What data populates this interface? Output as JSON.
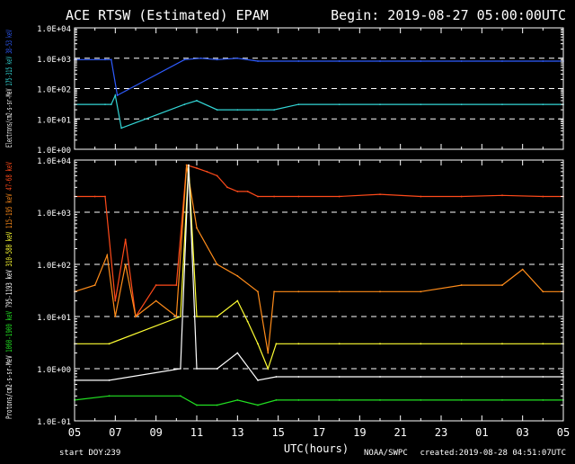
{
  "title": "ACE RTSW (Estimated) EPAM",
  "begin_text": "Begin: 2019-08-27  05:00:00UTC",
  "footer": {
    "start_doy_label": "start DOY:",
    "start_doy_value": "239",
    "x_axis_label": "UTC(hours)",
    "credit": "NOAA/SWPC",
    "created": "created:2019-08-28 04:51:07UTC"
  },
  "colors": {
    "background": "#000000",
    "axes": "#ffffff",
    "grid": "#ffffff",
    "e_38_53": "#2f5cff",
    "e_175_315": "#33d6d6",
    "p_47_68": "#ff4a1a",
    "p_115_195": "#ff8c1a",
    "p_310_580": "#ffff33",
    "p_795_1193": "#ffffff",
    "p_1060_1900": "#22e022"
  },
  "chart_data": [
    {
      "type": "line",
      "panel": "electrons",
      "ylabel": [
        {
          "text": "Electrons/cm2-s-sr-MeV",
          "color": "#ffffff"
        },
        {
          "text": "175-315 keV",
          "color": "#33d6d6"
        },
        {
          "text": "38-53 keV",
          "color": "#2f5cff"
        }
      ],
      "yscale": "log",
      "ylim": [
        1,
        10000
      ],
      "yticks": [
        "1.0E+00",
        "1.0E+01",
        "1.0E+02",
        "1.0E+03",
        "1.0E+04"
      ],
      "grid": "dashed at 1.0E+01, 1.0E+02, 1.0E+03",
      "series": [
        {
          "name": "38-53 keV",
          "color": "#2f5cff",
          "x": [
            5.0,
            6.5,
            6.8,
            7.1,
            10.4,
            11.2,
            12.0,
            13.0,
            14.0,
            16.0,
            18.0,
            20.0,
            22.0,
            24.0,
            26.0,
            28.0,
            29.0
          ],
          "y": [
            900,
            900,
            900,
            60,
            900,
            1000,
            900,
            1000,
            800,
            800,
            800,
            800,
            800,
            800,
            800,
            800,
            800
          ]
        },
        {
          "name": "175-315 keV",
          "color": "#33d6d6",
          "x": [
            5.0,
            6.5,
            6.8,
            7.0,
            7.3,
            10.4,
            11.0,
            12.0,
            13.0,
            14.0,
            14.8,
            16.0,
            18.0,
            20.0,
            22.0,
            24.0,
            26.0,
            28.0,
            29.0
          ],
          "y": [
            30,
            30,
            30,
            60,
            5,
            30,
            40,
            20,
            20,
            20,
            20,
            30,
            30,
            30,
            30,
            30,
            30,
            30,
            30
          ]
        }
      ]
    },
    {
      "type": "line",
      "panel": "protons",
      "ylabel": [
        {
          "text": "Protons/cm2-s-sr-MeV",
          "color": "#ffffff"
        },
        {
          "text": "1060-1900 keV",
          "color": "#22e022"
        },
        {
          "text": "795-1193 keV",
          "color": "#ffffff"
        },
        {
          "text": "310-580 keV",
          "color": "#ffff33"
        },
        {
          "text": "115-195 keV",
          "color": "#ff8c1a"
        },
        {
          "text": "47-68 keV",
          "color": "#ff4a1a"
        }
      ],
      "yscale": "log",
      "ylim": [
        0.1,
        10000
      ],
      "yticks": [
        "1.0E-01",
        "1.0E+00",
        "1.0E+01",
        "1.0E+02",
        "1.0E+03",
        "1.0E+04"
      ],
      "grid": "dashed at 1.0E+00, 1.0E+01, 1.0E+02",
      "series": [
        {
          "name": "47-68 keV",
          "color": "#ff4a1a",
          "x": [
            5.0,
            6.0,
            6.5,
            7.0,
            7.5,
            8.0,
            9.0,
            10.0,
            10.5,
            11.0,
            11.5,
            12.0,
            12.5,
            13.0,
            13.5,
            14.0,
            14.8,
            16.0,
            18.0,
            20.0,
            22.0,
            24.0,
            26.0,
            28.0,
            29.0
          ],
          "y": [
            2000,
            2000,
            2000,
            20,
            300,
            10,
            40,
            40,
            8000,
            7000,
            6000,
            5000,
            3000,
            2500,
            2500,
            2000,
            2000,
            2000,
            2000,
            2200,
            2000,
            2000,
            2100,
            2000,
            2000
          ]
        },
        {
          "name": "115-195 keV",
          "color": "#ff8c1a",
          "x": [
            5.0,
            6.0,
            6.6,
            7.0,
            7.5,
            8.0,
            9.0,
            10.0,
            10.5,
            11.0,
            12.0,
            13.0,
            14.0,
            14.5,
            14.8,
            16.0,
            18.0,
            20.0,
            22.0,
            24.0,
            26.0,
            27.0,
            28.0,
            29.0
          ],
          "y": [
            30,
            40,
            150,
            10,
            100,
            10,
            20,
            10,
            8000,
            500,
            100,
            60,
            30,
            2,
            30,
            30,
            30,
            30,
            30,
            40,
            40,
            80,
            30,
            30
          ]
        },
        {
          "name": "310-580 keV",
          "color": "#ffff33",
          "x": [
            5.0,
            6.7,
            10.2,
            10.6,
            11.0,
            12.0,
            13.0,
            13.5,
            14.0,
            14.5,
            14.9,
            16.0,
            18.0,
            20.0,
            22.0,
            24.0,
            26.0,
            28.0,
            29.0
          ],
          "y": [
            3,
            3,
            10,
            8000,
            10,
            10,
            20,
            8,
            3,
            1,
            3,
            3,
            3,
            3,
            3,
            3,
            3,
            3,
            3
          ]
        },
        {
          "name": "795-1193 keV",
          "color": "#ffffff",
          "x": [
            5.0,
            6.7,
            10.2,
            10.6,
            11.0,
            12.0,
            13.0,
            14.0,
            14.9,
            16.0,
            18.0,
            20.0,
            22.0,
            24.0,
            26.0,
            28.0,
            29.0
          ],
          "y": [
            0.6,
            0.6,
            1,
            8000,
            1,
            1,
            2,
            0.6,
            0.7,
            0.7,
            0.7,
            0.7,
            0.7,
            0.7,
            0.7,
            0.7,
            0.7
          ]
        },
        {
          "name": "1060-1900 keV",
          "color": "#22e022",
          "x": [
            5.0,
            6.7,
            10.2,
            11.0,
            12.0,
            13.0,
            14.0,
            14.9,
            16.0,
            18.0,
            20.0,
            22.0,
            24.0,
            26.0,
            28.0,
            29.0
          ],
          "y": [
            0.25,
            0.3,
            0.3,
            0.2,
            0.2,
            0.25,
            0.2,
            0.25,
            0.25,
            0.25,
            0.25,
            0.25,
            0.25,
            0.25,
            0.25,
            0.25
          ]
        }
      ]
    }
  ],
  "x_axis": {
    "xlim": [
      5,
      29
    ],
    "tick_labels": [
      "05",
      "07",
      "09",
      "11",
      "13",
      "15",
      "17",
      "19",
      "21",
      "23",
      "01",
      "03",
      "05"
    ]
  }
}
